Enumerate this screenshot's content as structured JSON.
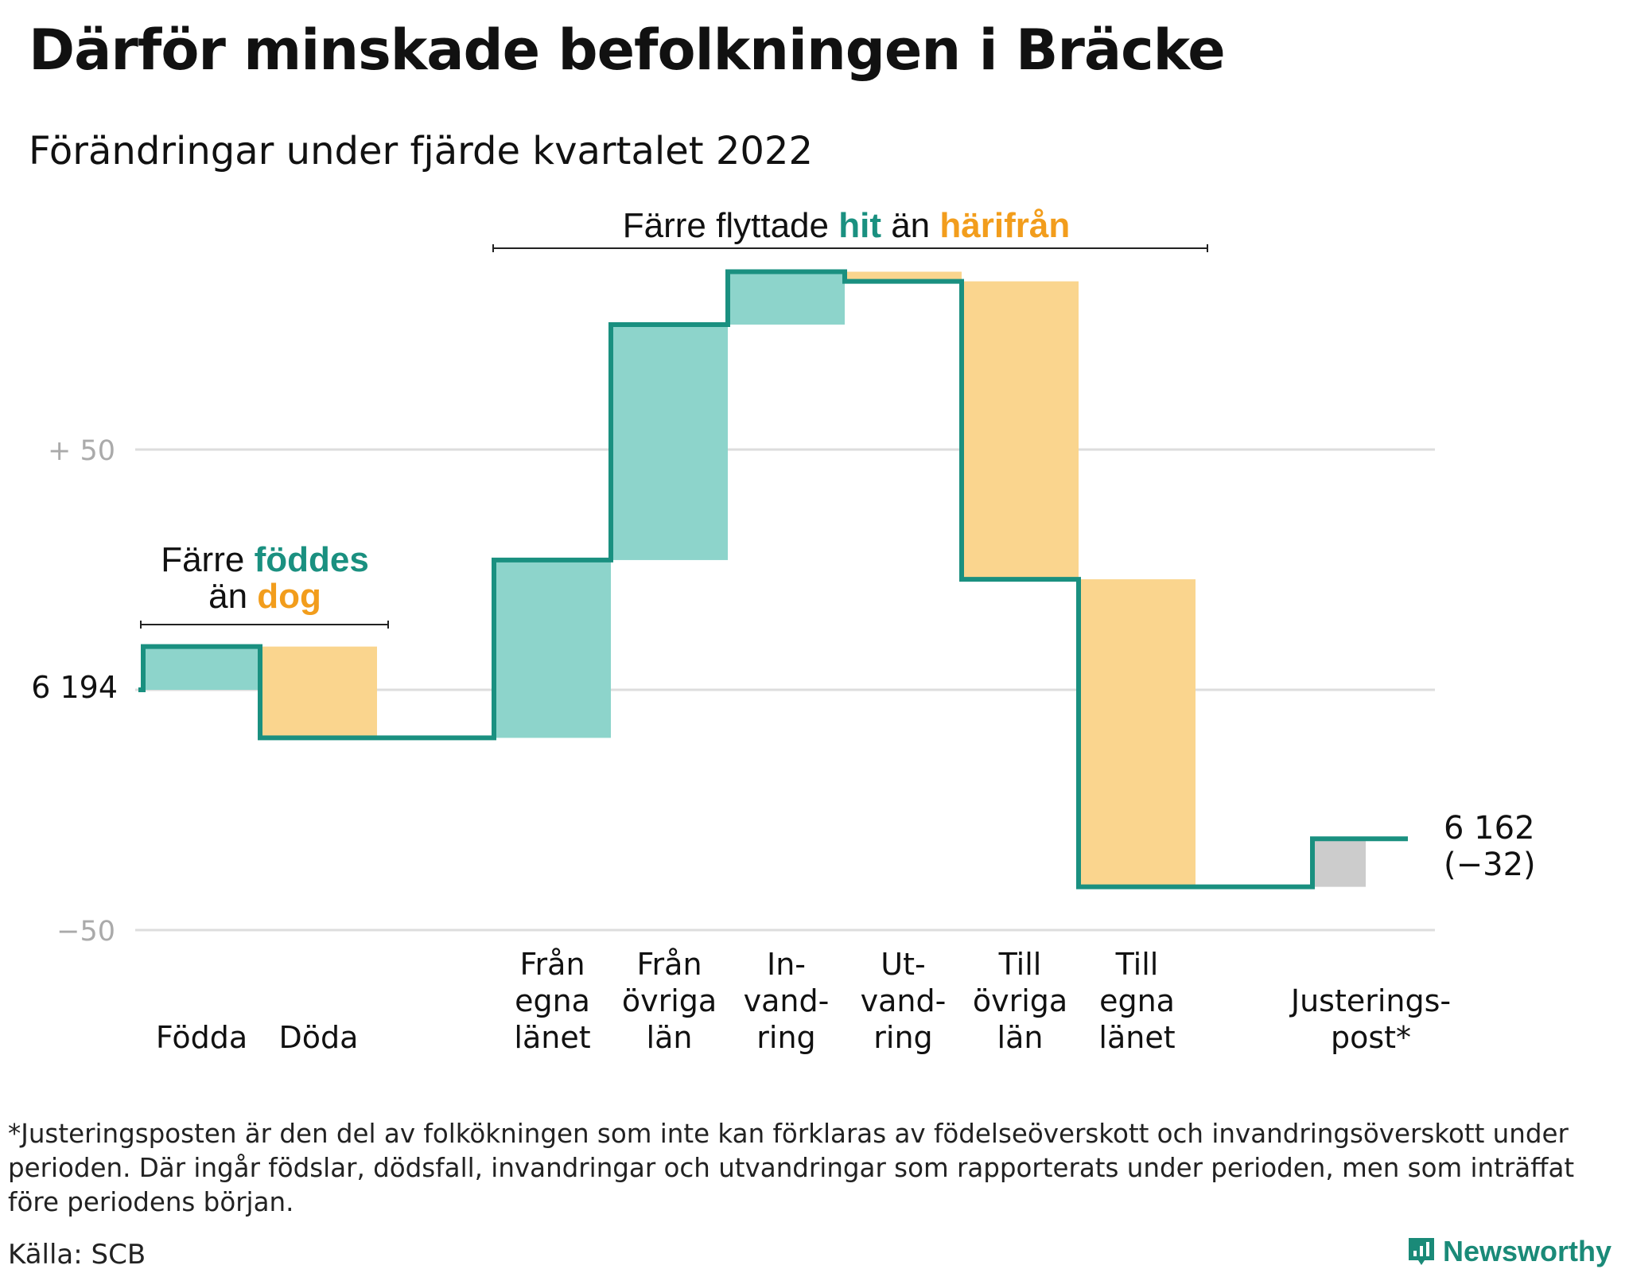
{
  "title": "Därför minskade befolkningen i Bräcke",
  "subtitle": "Förändringar under fjärde kvartalet 2022",
  "colors": {
    "inflow": "#8dd4cb",
    "outflow": "#fad58e",
    "adjustment": "#cccccc",
    "line": "#1a9080",
    "accent_teal": "#1a9080",
    "accent_orange": "#f29d1c",
    "grid": "#dddddd",
    "tick_text": "#aaaaaa"
  },
  "chart_data": {
    "type": "waterfall",
    "start_value": 6194,
    "start_label": "6 194",
    "end_value": 6162,
    "end_labels": [
      "6 162",
      "(−32)"
    ],
    "y_axis_ticks": [
      {
        "value": 50,
        "label": "+ 50"
      },
      {
        "value": 0,
        "label": ""
      },
      {
        "value": -50,
        "label": "−50"
      }
    ],
    "ylim": [
      -52,
      95
    ],
    "steps": [
      {
        "label_lines": [
          "Födda"
        ],
        "change": 9,
        "kind": "inflow"
      },
      {
        "label_lines": [
          "Döda"
        ],
        "change": -19,
        "kind": "outflow"
      },
      {
        "label_lines": [
          ""
        ],
        "change": 0,
        "kind": "gap"
      },
      {
        "label_lines": [
          "Från",
          "egna",
          "länet"
        ],
        "change": 37,
        "kind": "inflow"
      },
      {
        "label_lines": [
          "Från",
          "övriga",
          "län"
        ],
        "change": 49,
        "kind": "inflow"
      },
      {
        "label_lines": [
          "In-",
          "vand-",
          "ring"
        ],
        "change": 11,
        "kind": "inflow"
      },
      {
        "label_lines": [
          "Ut-",
          "vand-",
          "ring"
        ],
        "change": -2,
        "kind": "outflow"
      },
      {
        "label_lines": [
          "Till",
          "övriga",
          "län"
        ],
        "change": -62,
        "kind": "outflow"
      },
      {
        "label_lines": [
          "Till",
          "egna",
          "länet"
        ],
        "change": -64,
        "kind": "outflow"
      },
      {
        "label_lines": [
          ""
        ],
        "change": 0,
        "kind": "gap"
      },
      {
        "label_lines": [
          "Justerings-",
          "post*"
        ],
        "change": 10,
        "kind": "adjustment"
      }
    ],
    "annotations": {
      "births": {
        "line1": [
          "Färre ",
          "föddes"
        ],
        "line2": [
          "än ",
          "dog"
        ]
      },
      "migration": [
        "Färre flyttade ",
        "hit",
        " än ",
        "härifrån"
      ]
    },
    "grid": true
  },
  "footnote": "*Justeringsposten är den del av folkökningen som inte kan förklaras av födelseöverskott och invandringsöverskott under perioden. Där ingår födslar, dödsfall, invandringar och utvandringar som rapporterats under perioden, men som inträffat före periodens början.",
  "source": "Källa: SCB",
  "brand": {
    "name": "Newsworthy",
    "icon": "newsworthy-logo-icon"
  }
}
